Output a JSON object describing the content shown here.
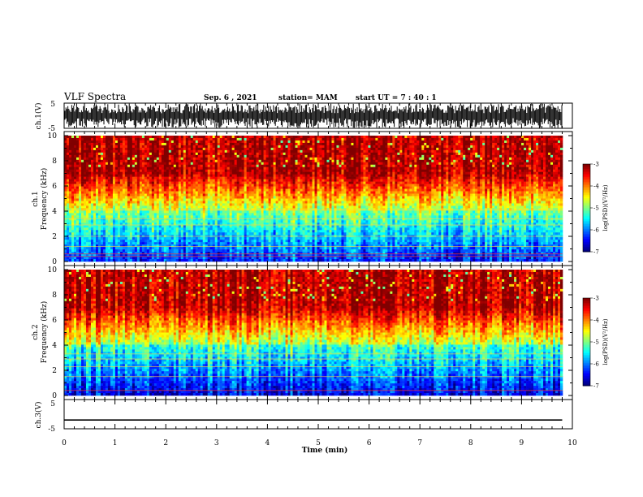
{
  "header": {
    "title": "VLF Spectra",
    "date": "Sep. 6 , 2021",
    "station": "station= MAM",
    "start": "start  UT =   7 : 40 : 1"
  },
  "chart_data": [
    {
      "type": "line",
      "name": "ch1-waveform",
      "ylabel": "ch.1(V)",
      "ylim": [
        -5,
        5
      ],
      "yticks": [
        "5",
        "-5"
      ],
      "xlim": [
        0,
        10
      ],
      "description_series": "dense black voltage trace filling most of range"
    },
    {
      "type": "heatmap",
      "name": "ch1-spectrogram",
      "ylabel_top": "ch.1",
      "ylabel": "Frequency  (kHz)",
      "ylim": [
        0,
        10
      ],
      "yticks": [
        "0",
        "2",
        "4",
        "6",
        "8",
        "10"
      ],
      "xlim": [
        0,
        10
      ],
      "colorbar": {
        "label": "log(PSD)(V²/Hz)",
        "ticks": [
          "-3",
          "-4",
          "-5",
          "-6",
          "-7"
        ],
        "range": [
          -7,
          -3
        ]
      }
    },
    {
      "type": "heatmap",
      "name": "ch2-spectrogram",
      "ylabel_top": "ch.2",
      "ylabel": "Frequency  (kHz)",
      "ylim": [
        0,
        10
      ],
      "yticks": [
        "0",
        "2",
        "4",
        "6",
        "8",
        "10"
      ],
      "xlim": [
        0,
        10
      ],
      "colorbar": {
        "label": "log(PSD)(V²/Hz)",
        "ticks": [
          "-3",
          "-4",
          "-5",
          "-6",
          "-7"
        ],
        "range": [
          -7,
          -3
        ]
      }
    },
    {
      "type": "line",
      "name": "ch3-waveform",
      "ylabel": "ch.3(V)",
      "ylim": [
        -5,
        5
      ],
      "yticks": [
        "5",
        "-5"
      ],
      "xlim": [
        0,
        10
      ],
      "xlabel": "Time  (min)",
      "xticks": [
        "0",
        "1",
        "2",
        "3",
        "4",
        "5",
        "6",
        "7",
        "8",
        "9",
        "10"
      ],
      "x": [
        0,
        9.8
      ],
      "y": [
        -2,
        -2
      ]
    }
  ]
}
